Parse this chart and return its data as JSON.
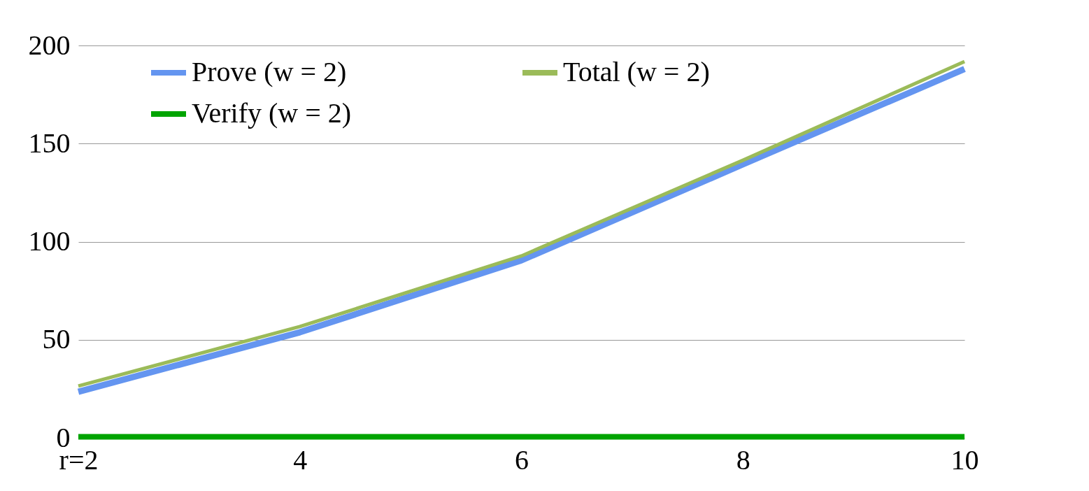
{
  "chart_data": {
    "type": "line",
    "categories": [
      "r=2",
      "4",
      "6",
      "8",
      "10"
    ],
    "series": [
      {
        "name": "Prove (w = 2)",
        "color": "#6495f0",
        "values": [
          23.5,
          53.8,
          90.5,
          139.4,
          188
        ]
      },
      {
        "name": "Verify (w = 2)",
        "color": "#00a400",
        "values": [
          0.5,
          0.5,
          0.5,
          0.5,
          0.5
        ]
      },
      {
        "name": "Total (w = 2)",
        "color": "#9bbb59",
        "values": [
          26.4,
          56.7,
          92.7,
          141.5,
          191.8
        ]
      }
    ],
    "ylim": [
      0,
      200
    ],
    "yticks": [
      0,
      50,
      100,
      150,
      200
    ],
    "grid": "y",
    "legend": "top left",
    "marker": "none",
    "line_style": "solid"
  }
}
